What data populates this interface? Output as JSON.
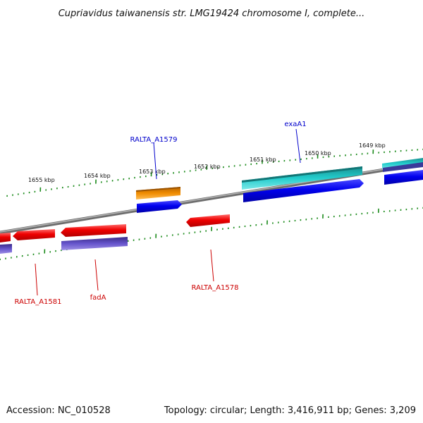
{
  "title": "Cupriavidus taiwanensis str. LMG19424 chromosome I, complete...",
  "footer": {
    "accession": "Accession: NC_010528",
    "summary": "Topology: circular; Length: 3,416,911 bp; Genes: 3,209"
  },
  "kbp_labels": [
    "1655 kbp",
    "1654 kbp",
    "1653 kbp",
    "1652 kbp",
    "1651 kbp",
    "1650 kbp",
    "1649 kbp"
  ],
  "gene_labels": {
    "ralta_a1579": "RALTA_A1579",
    "exaa1": "exaA1",
    "ralta_a1581": "RALTA_A1581",
    "fada": "fadA",
    "ralta_a1578": "RALTA_A1578"
  },
  "colors": {
    "tick": "#1a8a1a",
    "backbone": "#888888",
    "red_feature": "#ee0000",
    "blue_feature": "#0000ee",
    "purple_feature": "#6655cc",
    "cyan_feature": "#22cccc",
    "orange_feature": "#f08c00",
    "label_blue": "#0000cc",
    "label_red": "#cc0000"
  }
}
